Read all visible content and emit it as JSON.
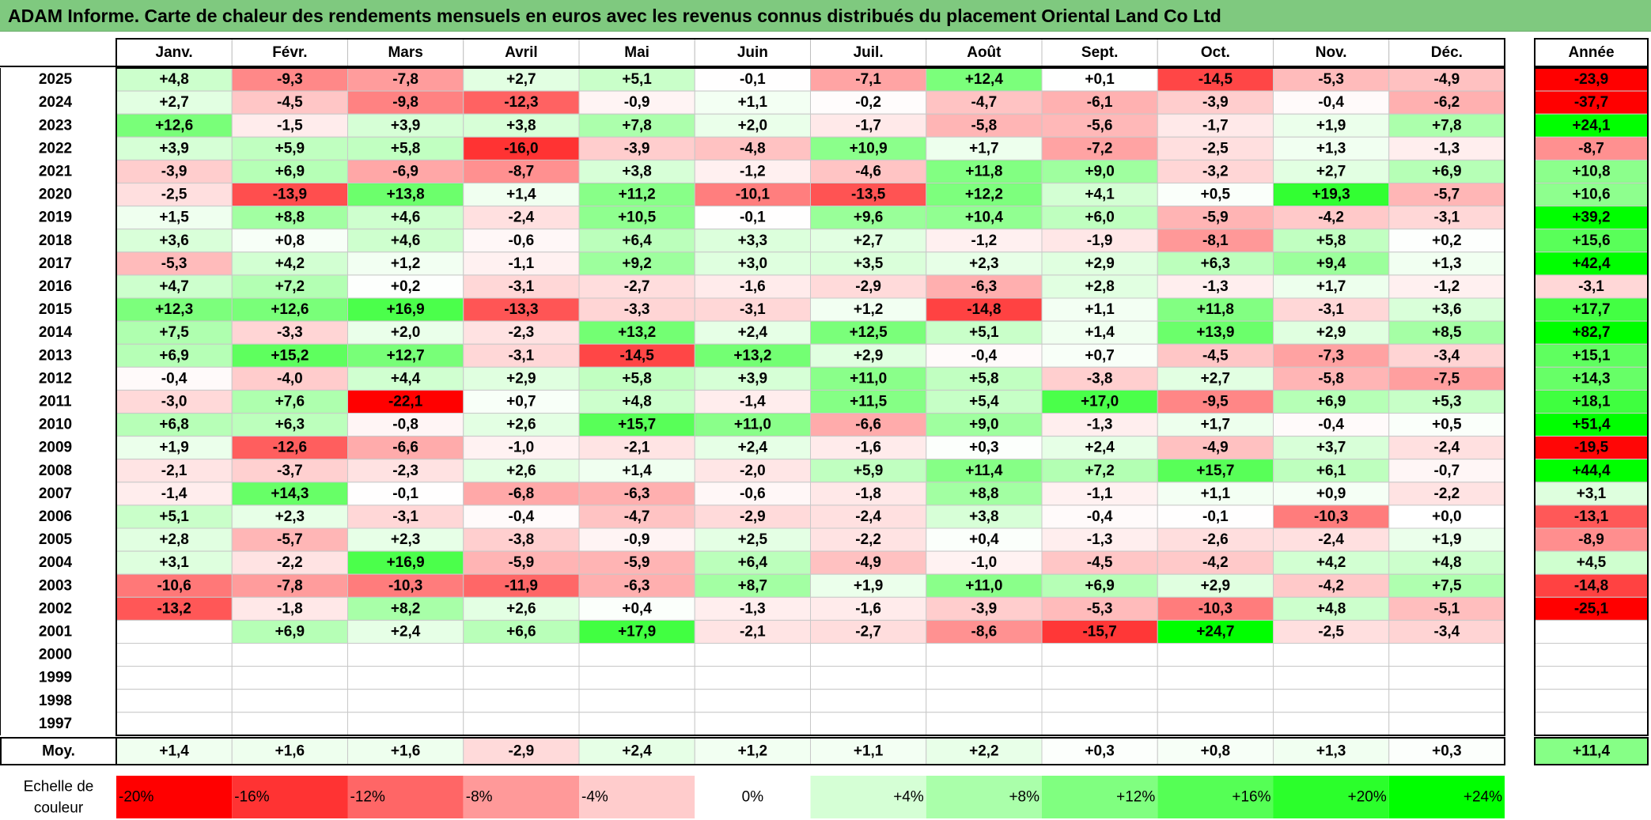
{
  "title": "ADAM Informe. Carte de chaleur des rendements mensuels en euros avec les revenus connus distribués du placement Oriental Land Co Ltd",
  "colors": {
    "title_bg": "#7fc97f",
    "negative_max": "#ff0000",
    "neutral": "#ffffff",
    "positive_max": "#00ff00"
  },
  "chart_data": {
    "type": "heatmap",
    "months": [
      "Janv.",
      "Févr.",
      "Mars",
      "Avril",
      "Mai",
      "Juin",
      "Juil.",
      "Août",
      "Sept.",
      "Oct.",
      "Nov.",
      "Déc."
    ],
    "year_header": "Année",
    "years": [
      "2025",
      "2024",
      "2023",
      "2022",
      "2021",
      "2020",
      "2019",
      "2018",
      "2017",
      "2016",
      "2015",
      "2014",
      "2013",
      "2012",
      "2011",
      "2010",
      "2009",
      "2008",
      "2007",
      "2006",
      "2005",
      "2004",
      "2003",
      "2002",
      "2001",
      "2000",
      "1999",
      "1998",
      "1997"
    ],
    "values": [
      [
        "+4,8",
        "-9,3",
        "-7,8",
        "+2,7",
        "+5,1",
        "-0,1",
        "-7,1",
        "+12,4",
        "+0,1",
        "-14,5",
        "-5,3",
        "-4,9"
      ],
      [
        "+2,7",
        "-4,5",
        "-9,8",
        "-12,3",
        "-0,9",
        "+1,1",
        "-0,2",
        "-4,7",
        "-6,1",
        "-3,9",
        "-0,4",
        "-6,2"
      ],
      [
        "+12,6",
        "-1,5",
        "+3,9",
        "+3,8",
        "+7,8",
        "+2,0",
        "-1,7",
        "-5,8",
        "-5,6",
        "-1,7",
        "+1,9",
        "+7,8"
      ],
      [
        "+3,9",
        "+5,9",
        "+5,8",
        "-16,0",
        "-3,9",
        "-4,8",
        "+10,9",
        "+1,7",
        "-7,2",
        "-2,5",
        "+1,3",
        "-1,3"
      ],
      [
        "-3,9",
        "+6,9",
        "-6,9",
        "-8,7",
        "+3,8",
        "-1,2",
        "-4,6",
        "+11,8",
        "+9,0",
        "-3,2",
        "+2,7",
        "+6,9"
      ],
      [
        "-2,5",
        "-13,9",
        "+13,8",
        "+1,4",
        "+11,2",
        "-10,1",
        "-13,5",
        "+12,2",
        "+4,1",
        "+0,5",
        "+19,3",
        "-5,7"
      ],
      [
        "+1,5",
        "+8,8",
        "+4,6",
        "-2,4",
        "+10,5",
        "-0,1",
        "+9,6",
        "+10,4",
        "+6,0",
        "-5,9",
        "-4,2",
        "-3,1"
      ],
      [
        "+3,6",
        "+0,8",
        "+4,6",
        "-0,6",
        "+6,4",
        "+3,3",
        "+2,7",
        "-1,2",
        "-1,9",
        "-8,1",
        "+5,8",
        "+0,2"
      ],
      [
        "-5,3",
        "+4,2",
        "+1,2",
        "-1,1",
        "+9,2",
        "+3,0",
        "+3,5",
        "+2,3",
        "+2,9",
        "+6,3",
        "+9,4",
        "+1,3"
      ],
      [
        "+4,7",
        "+7,2",
        "+0,2",
        "-3,1",
        "-2,7",
        "-1,6",
        "-2,9",
        "-6,3",
        "+2,8",
        "-1,3",
        "+1,7",
        "-1,2"
      ],
      [
        "+12,3",
        "+12,6",
        "+16,9",
        "-13,3",
        "-3,3",
        "-3,1",
        "+1,2",
        "-14,8",
        "+1,1",
        "+11,8",
        "-3,1",
        "+3,6"
      ],
      [
        "+7,5",
        "-3,3",
        "+2,0",
        "-2,3",
        "+13,2",
        "+2,4",
        "+12,5",
        "+5,1",
        "+1,4",
        "+13,9",
        "+2,9",
        "+8,5"
      ],
      [
        "+6,9",
        "+15,2",
        "+12,7",
        "-3,1",
        "-14,5",
        "+13,2",
        "+2,9",
        "-0,4",
        "+0,7",
        "-4,5",
        "-7,3",
        "-3,4"
      ],
      [
        "-0,4",
        "-4,0",
        "+4,4",
        "+2,9",
        "+5,8",
        "+3,9",
        "+11,0",
        "+5,8",
        "-3,8",
        "+2,7",
        "-5,8",
        "-7,5"
      ],
      [
        "-3,0",
        "+7,6",
        "-22,1",
        "+0,7",
        "+4,8",
        "-1,4",
        "+11,5",
        "+5,4",
        "+17,0",
        "-9,5",
        "+6,9",
        "+5,3"
      ],
      [
        "+6,8",
        "+6,3",
        "-0,8",
        "+2,6",
        "+15,7",
        "+11,0",
        "-6,6",
        "+9,0",
        "-1,3",
        "+1,7",
        "-0,4",
        "+0,5"
      ],
      [
        "+1,9",
        "-12,6",
        "-6,6",
        "-1,0",
        "-2,1",
        "+2,4",
        "-1,6",
        "+0,3",
        "+2,4",
        "-4,9",
        "+3,7",
        "-2,4"
      ],
      [
        "-2,1",
        "-3,7",
        "-2,3",
        "+2,6",
        "+1,4",
        "-2,0",
        "+5,9",
        "+11,4",
        "+7,2",
        "+15,7",
        "+6,1",
        "-0,7"
      ],
      [
        "-1,4",
        "+14,3",
        "-0,1",
        "-6,8",
        "-6,3",
        "-0,6",
        "-1,8",
        "+8,8",
        "-1,1",
        "+1,1",
        "+0,9",
        "-2,2"
      ],
      [
        "+5,1",
        "+2,3",
        "-3,1",
        "-0,4",
        "-4,7",
        "-2,9",
        "-2,4",
        "+3,8",
        "-0,4",
        "-0,1",
        "-10,3",
        "+0,0"
      ],
      [
        "+2,8",
        "-5,7",
        "+2,3",
        "-3,8",
        "-0,9",
        "+2,5",
        "-2,2",
        "+0,4",
        "-1,3",
        "-2,6",
        "-2,4",
        "+1,9"
      ],
      [
        "+3,1",
        "-2,2",
        "+16,9",
        "-5,9",
        "-5,9",
        "+6,4",
        "-4,9",
        "-1,0",
        "-4,5",
        "-4,2",
        "+4,2",
        "+4,8"
      ],
      [
        "-10,6",
        "-7,8",
        "-10,3",
        "-11,9",
        "-6,3",
        "+8,7",
        "+1,9",
        "+11,0",
        "+6,9",
        "+2,9",
        "-4,2",
        "+7,5"
      ],
      [
        "-13,2",
        "-1,8",
        "+8,2",
        "+2,6",
        "+0,4",
        "-1,3",
        "-1,6",
        "-3,9",
        "-5,3",
        "-10,3",
        "+4,8",
        "-5,1"
      ],
      [
        "",
        "+6,9",
        "+2,4",
        "+6,6",
        "+17,9",
        "-2,1",
        "-2,7",
        "-8,6",
        "-15,7",
        "+24,7",
        "-2,5",
        "-3,4"
      ],
      [
        "",
        "",
        "",
        "",
        "",
        "",
        "",
        "",
        "",
        "",
        "",
        ""
      ],
      [
        "",
        "",
        "",
        "",
        "",
        "",
        "",
        "",
        "",
        "",
        "",
        ""
      ],
      [
        "",
        "",
        "",
        "",
        "",
        "",
        "",
        "",
        "",
        "",
        "",
        ""
      ],
      [
        "",
        "",
        "",
        "",
        "",
        "",
        "",
        "",
        "",
        "",
        "",
        ""
      ]
    ],
    "annual": [
      "-23,9",
      "-37,7",
      "+24,1",
      "-8,7",
      "+10,8",
      "+10,6",
      "+39,2",
      "+15,6",
      "+42,4",
      "-3,1",
      "+17,7",
      "+82,7",
      "+15,1",
      "+14,3",
      "+18,1",
      "+51,4",
      "-19,5",
      "+44,4",
      "+3,1",
      "-13,1",
      "-8,9",
      "+4,5",
      "-14,8",
      "-25,1",
      "",
      "",
      "",
      "",
      ""
    ],
    "average_label": "Moy.",
    "averages": [
      "+1,4",
      "+1,6",
      "+1,6",
      "-2,9",
      "+2,4",
      "+1,2",
      "+1,1",
      "+2,2",
      "+0,3",
      "+0,8",
      "+1,3",
      "+0,3"
    ],
    "average_annual": "+11,4",
    "scale_label": [
      "Echelle de",
      "couleur"
    ],
    "scale": [
      "-20%",
      "-16%",
      "-12%",
      "-8%",
      "-4%",
      "0%",
      "+4%",
      "+8%",
      "+12%",
      "+16%",
      "+20%",
      "+24%"
    ],
    "scale_values": [
      -20,
      -16,
      -12,
      -8,
      -4,
      0,
      4,
      8,
      12,
      16,
      20,
      24
    ]
  }
}
